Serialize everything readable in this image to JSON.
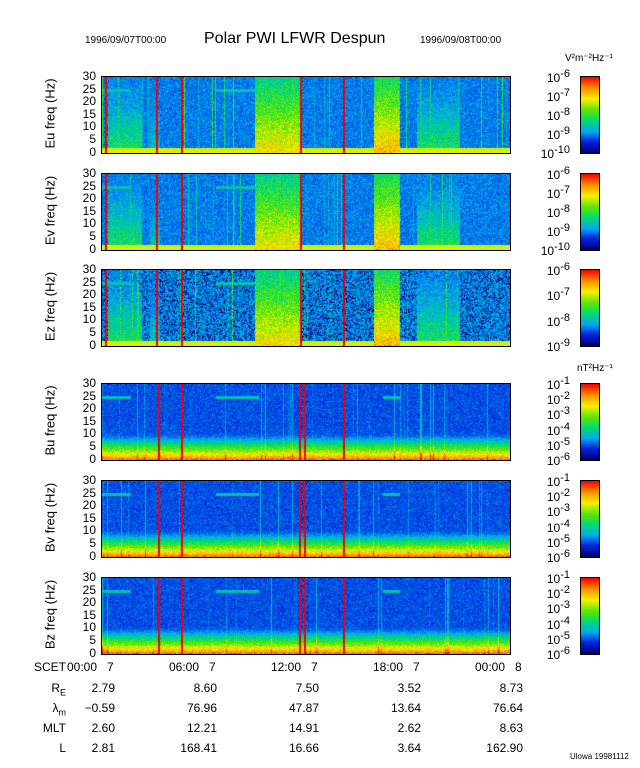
{
  "header": {
    "start_time": "1996/09/07T00:00",
    "title": "Polar PWI LFWR Despun",
    "end_time": "1996/09/08T00:00",
    "e_units": "V²m⁻²Hz⁻¹",
    "b_units": "nT²Hz⁻¹"
  },
  "chart_data": {
    "type": "heatmap",
    "title": "Polar PWI LFWR Despun",
    "x_range_hours": [
      0,
      24
    ],
    "y_range_hz": [
      0,
      30
    ],
    "ytick_labels": [
      "30",
      "25",
      "20",
      "15",
      "10",
      "5",
      "0"
    ],
    "panels": [
      {
        "name": "Eu",
        "ylabel": "Eu freq (Hz)",
        "kind": "E",
        "cbar_ticks": [
          "-6",
          "-7",
          "-8",
          "-9",
          "-10"
        ]
      },
      {
        "name": "Ev",
        "ylabel": "Ev freq (Hz)",
        "kind": "E",
        "cbar_ticks": [
          "-6",
          "-7",
          "-8",
          "-9",
          "-10"
        ]
      },
      {
        "name": "Ez",
        "ylabel": "Ez freq (Hz)",
        "kind": "Ez",
        "cbar_ticks": [
          "-6",
          "-7",
          "-8",
          "-9"
        ]
      },
      {
        "name": "Bu",
        "ylabel": "Bu freq (Hz)",
        "kind": "B",
        "cbar_ticks": [
          "-1",
          "-2",
          "-3",
          "-4",
          "-5",
          "-6"
        ]
      },
      {
        "name": "Bv",
        "ylabel": "Bv freq (Hz)",
        "kind": "B",
        "cbar_ticks": [
          "-1",
          "-2",
          "-3",
          "-4",
          "-5",
          "-6"
        ]
      },
      {
        "name": "Bz",
        "ylabel": "Bz freq (Hz)",
        "kind": "B",
        "cbar_ticks": [
          "-1",
          "-2",
          "-3",
          "-4",
          "-5",
          "-6"
        ]
      }
    ],
    "e_enhancements_hours": [
      [
        0.3,
        2.3,
        0.55
      ],
      [
        2.8,
        3.4,
        0.45
      ],
      [
        9.0,
        11.7,
        0.8
      ],
      [
        16.0,
        17.5,
        0.85
      ],
      [
        18.5,
        21.0,
        0.55
      ]
    ],
    "red_spike_hours_e": [
      0.2,
      3.2,
      4.7,
      11.7,
      14.2
    ],
    "red_spike_hours_b": [
      3.3,
      4.7,
      11.6,
      11.9,
      14.2
    ],
    "line_25hz_hours": [
      [
        0,
        1.7
      ],
      [
        6.7,
        9.2
      ],
      [
        16.5,
        17.5
      ]
    ]
  },
  "xaxis": {
    "row_label": "SCET",
    "ticks": [
      {
        "time": "00:00",
        "day": "7"
      },
      {
        "time": "06:00",
        "day": "7"
      },
      {
        "time": "12:00",
        "day": "7"
      },
      {
        "time": "18:00",
        "day": "7"
      },
      {
        "time": "00:00",
        "day": "8"
      }
    ]
  },
  "ephemeris": [
    {
      "label": "R",
      "sub": "E",
      "values": [
        "2.79",
        "8.60",
        "7.50",
        "3.52",
        "8.73"
      ]
    },
    {
      "label": "λ",
      "sub": "m",
      "values": [
        "−0.59",
        "76.96",
        "47.87",
        "13.64",
        "76.64"
      ]
    },
    {
      "label": "MLT",
      "sub": "",
      "values": [
        "2.60",
        "12.21",
        "14.91",
        "2.62",
        "8.63"
      ]
    },
    {
      "label": "L",
      "sub": "",
      "values": [
        "2.81",
        "168.41",
        "16.66",
        "3.64",
        "162.90"
      ]
    }
  ],
  "footer": "Ulowa 19981112"
}
